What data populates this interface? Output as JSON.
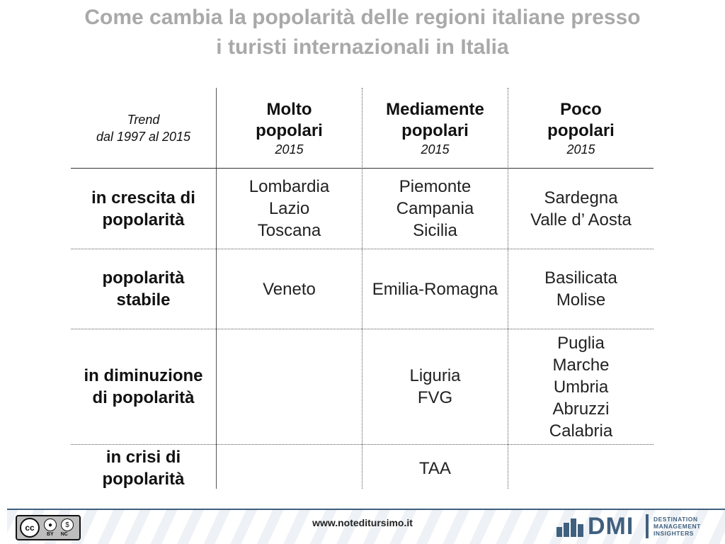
{
  "title": {
    "line1": "Come cambia la popolarità delle regioni italiane presso",
    "line2": "i turisti internazionali in Italia"
  },
  "table": {
    "trend_header": {
      "line1": "Trend",
      "line2": "dal 1997 al 2015"
    },
    "columns": [
      {
        "line1": "Molto",
        "line2": "popolari",
        "year": "2015"
      },
      {
        "line1": "Mediamente",
        "line2": "popolari",
        "year": "2015"
      },
      {
        "line1": "Poco",
        "line2": "popolari",
        "year": "2015"
      }
    ],
    "rows": [
      {
        "label_line1": "in crescita di",
        "label_line2": "popolarità",
        "cells": [
          [
            "Lombardia",
            "Lazio",
            "Toscana"
          ],
          [
            "Piemonte",
            "Campania",
            "Sicilia"
          ],
          [
            "Sardegna",
            "Valle d’ Aosta"
          ]
        ]
      },
      {
        "label_line1": "popolarità",
        "label_line2": "stabile",
        "cells": [
          [
            "Veneto"
          ],
          [
            "Emilia-Romagna"
          ],
          [
            "Basilicata",
            "Molise"
          ]
        ]
      },
      {
        "label_line1": "in diminuzione",
        "label_line2": "di popolarità",
        "cells": [
          [],
          [
            "Liguria",
            "FVG"
          ],
          [
            "Puglia",
            "Marche",
            "Umbria",
            "Abruzzi",
            "Calabria"
          ]
        ]
      },
      {
        "label_line1": "in crisi di",
        "label_line2": "popolarità",
        "cells": [
          [],
          [
            "TAA"
          ],
          []
        ]
      }
    ]
  },
  "footer": {
    "url": "www.noteditursimo.it",
    "license": {
      "main": "cc",
      "by": "BY",
      "nc": "NC"
    },
    "logo": {
      "mark": "DMI",
      "sub_line1": "DESTINATION",
      "sub_line2": "MANAGEMENT",
      "sub_line3": "INSIGHTERS"
    }
  },
  "colors": {
    "title": "#a9a9a9",
    "brand": "#3f607f"
  }
}
